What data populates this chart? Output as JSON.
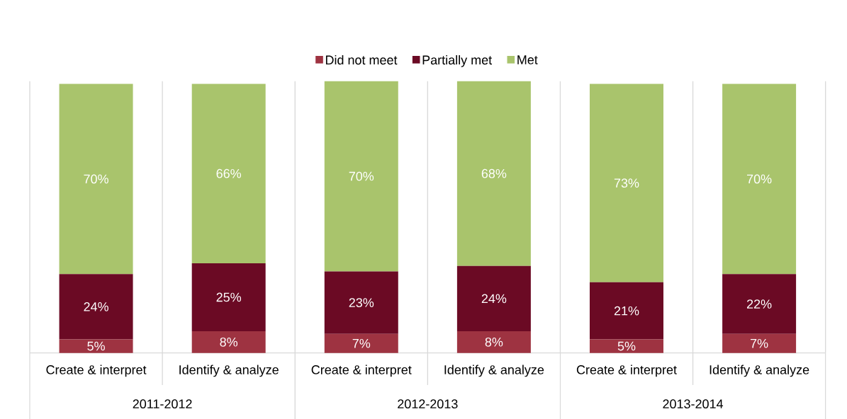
{
  "chart_data": {
    "type": "bar",
    "stacked": true,
    "legend": "top",
    "grid": "x",
    "categories": [
      "Create & interpret",
      "Identify & analyze",
      "Create & interpret",
      "Identify & analyze",
      "Create & interpret",
      "Identify & analyze"
    ],
    "series": [
      {
        "name": "Did not meet",
        "color": "#9e3341",
        "values": [
          5,
          8,
          7,
          8,
          5,
          7
        ],
        "value_labels": [
          "5%",
          "8%",
          "7%",
          "8%",
          "5%",
          "7%"
        ]
      },
      {
        "name": "Partially met",
        "color": "#6b0a24",
        "values": [
          24,
          25,
          23,
          24,
          21,
          22
        ],
        "value_labels": [
          "24%",
          "25%",
          "23%",
          "24%",
          "21%",
          "22%"
        ]
      },
      {
        "name": "Met",
        "color": "#a9c46c",
        "values": [
          70,
          66,
          70,
          68,
          73,
          70
        ],
        "value_labels": [
          "70%",
          "66%",
          "70%",
          "68%",
          "73%",
          "70%"
        ]
      }
    ],
    "annotations": [
      "2011-2012",
      "2012-2013",
      "2013-2014"
    ]
  }
}
